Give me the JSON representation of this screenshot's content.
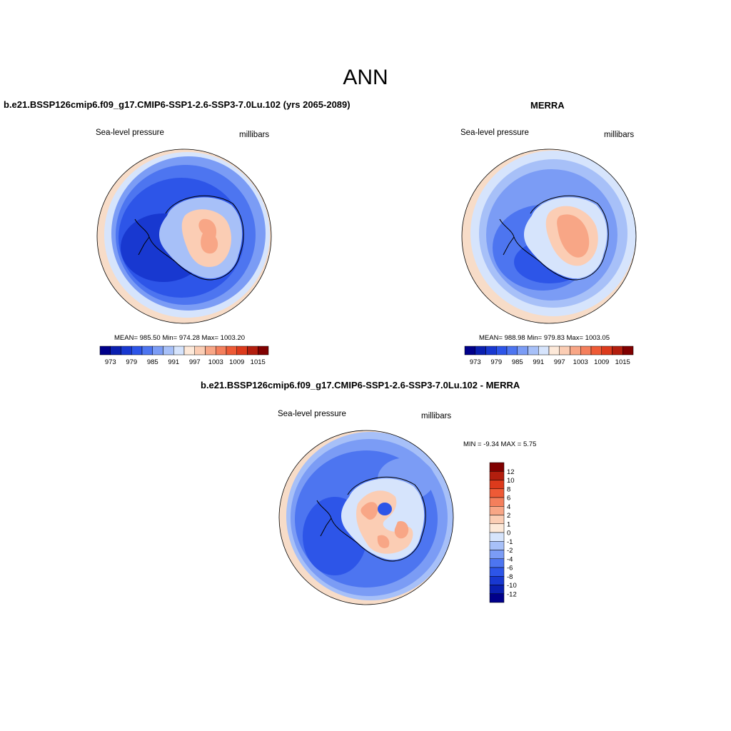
{
  "page_title": "ANN",
  "panels": [
    {
      "title": "b.e21.BSSP126cmip6.f09_g17.CMIP6-SSP1-2.6-SSP3-7.0Lu.102 (yrs 2065-2089)",
      "left_label": "Sea-level pressure",
      "right_label": "millibars",
      "stats": "MEAN= 985.50  Min= 974.28  Max= 1003.20"
    },
    {
      "title": "MERRA",
      "left_label": "Sea-level pressure",
      "right_label": "millibars",
      "stats": "MEAN= 988.98  Min= 979.83  Max= 1003.05"
    },
    {
      "title": "b.e21.BSSP126cmip6.f09_g17.CMIP6-SSP1-2.6-SSP3-7.0Lu.102 - MERRA",
      "left_label": "Sea-level pressure",
      "right_label": "millibars",
      "stats": "MIN =  -9.34 MAX =   5.75"
    }
  ],
  "colorbar_abs": {
    "colors": [
      "#00008a",
      "#0a1fb0",
      "#1838d0",
      "#2d55e8",
      "#4d75f0",
      "#7b9cf5",
      "#a7c0f8",
      "#d6e4fc",
      "#fde9d9",
      "#fbcdb4",
      "#f8a686",
      "#f47f5c",
      "#ee5a36",
      "#dc3a1c",
      "#b31e0e",
      "#800000"
    ],
    "labels": [
      "973",
      "979",
      "985",
      "991",
      "997",
      "1003",
      "1009",
      "1015"
    ]
  },
  "colorbar_diff": {
    "colors": [
      "#800000",
      "#b31e0e",
      "#dc3a1c",
      "#ee5a36",
      "#f47f5c",
      "#f8a686",
      "#fbcdb4",
      "#fde9d9",
      "#d6e4fc",
      "#a7c0f8",
      "#7b9cf5",
      "#4d75f0",
      "#2d55e8",
      "#1838d0",
      "#0a1fb0",
      "#00008a"
    ],
    "labels": [
      "12",
      "10",
      "8",
      "6",
      "4",
      "2",
      "1",
      "0",
      "-1",
      "-2",
      "-4",
      "-6",
      "-8",
      "-10",
      "-12"
    ]
  },
  "map_colors": {
    "ocean_ring_outer": "#f7dcc8",
    "ocean_ring_2": "#d6e4fc",
    "ocean_ring_3": "#7b9cf5",
    "ocean_ring_4": "#2d55e8",
    "ocean_deep": "#1838d0",
    "land_low": "#a7c0f8",
    "land_mid": "#fbcdb4",
    "land_high": "#f47f5c"
  }
}
